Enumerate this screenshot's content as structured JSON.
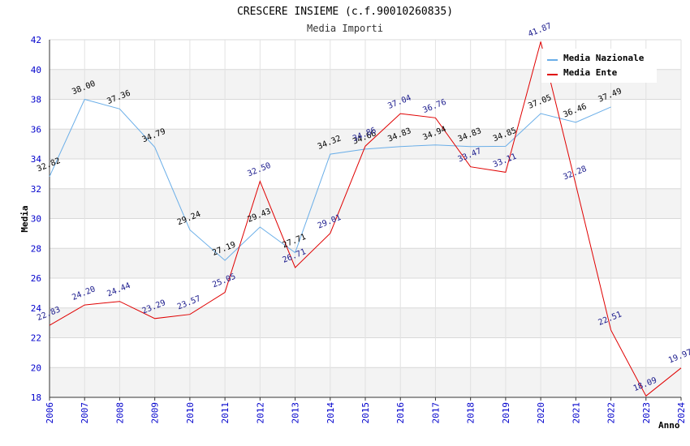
{
  "chart_data": {
    "type": "line",
    "title": "CRESCERE INSIEME (c.f.90010260835)",
    "subtitle": "Media Importi",
    "xlabel": "Anno",
    "ylabel": "Media",
    "ylim": [
      18,
      42
    ],
    "yticks": [
      "18",
      "20",
      "22",
      "24",
      "26",
      "28",
      "30",
      "32",
      "34",
      "36",
      "38",
      "40",
      "42"
    ],
    "grid": true,
    "legend_position": "top-right",
    "x": [
      "2006",
      "2007",
      "2008",
      "2009",
      "2010",
      "2011",
      "2012",
      "2013",
      "2014",
      "2015",
      "2016",
      "2017",
      "2018",
      "2019",
      "2020",
      "2021",
      "2022",
      "2023",
      "2024"
    ],
    "series": [
      {
        "name": "Media Nazionale",
        "color": "#6aaee8",
        "values": [
          32.82,
          38.0,
          37.36,
          34.79,
          29.24,
          27.19,
          29.43,
          27.71,
          34.32,
          34.66,
          34.83,
          34.94,
          34.83,
          34.85,
          37.05,
          36.46,
          37.49,
          null,
          null
        ],
        "labels": [
          "32.82",
          "38.00",
          "37.36",
          "34.79",
          "29.24",
          "27.19",
          "29.43",
          "27.71",
          "34.32",
          "34.66",
          "34.83",
          "34.94",
          "34.83",
          "34.85",
          "37.05",
          "36.46",
          "37.49",
          null,
          null
        ]
      },
      {
        "name": "Media Ente",
        "color": "#e00000",
        "values": [
          22.83,
          24.2,
          24.44,
          23.29,
          23.57,
          25.05,
          32.5,
          26.71,
          29.01,
          34.86,
          37.04,
          36.76,
          33.47,
          33.11,
          41.87,
          32.28,
          22.51,
          18.09,
          19.97
        ],
        "labels": [
          "22.83",
          "24.20",
          "24.44",
          "23.29",
          "23.57",
          "25.05",
          "32.50",
          "26.71",
          "29.01",
          "34.86",
          "37.04",
          "36.76",
          "33.47",
          "33.11",
          "41.87",
          "32.28",
          "22.51",
          "18.09",
          "19.97"
        ]
      }
    ]
  }
}
